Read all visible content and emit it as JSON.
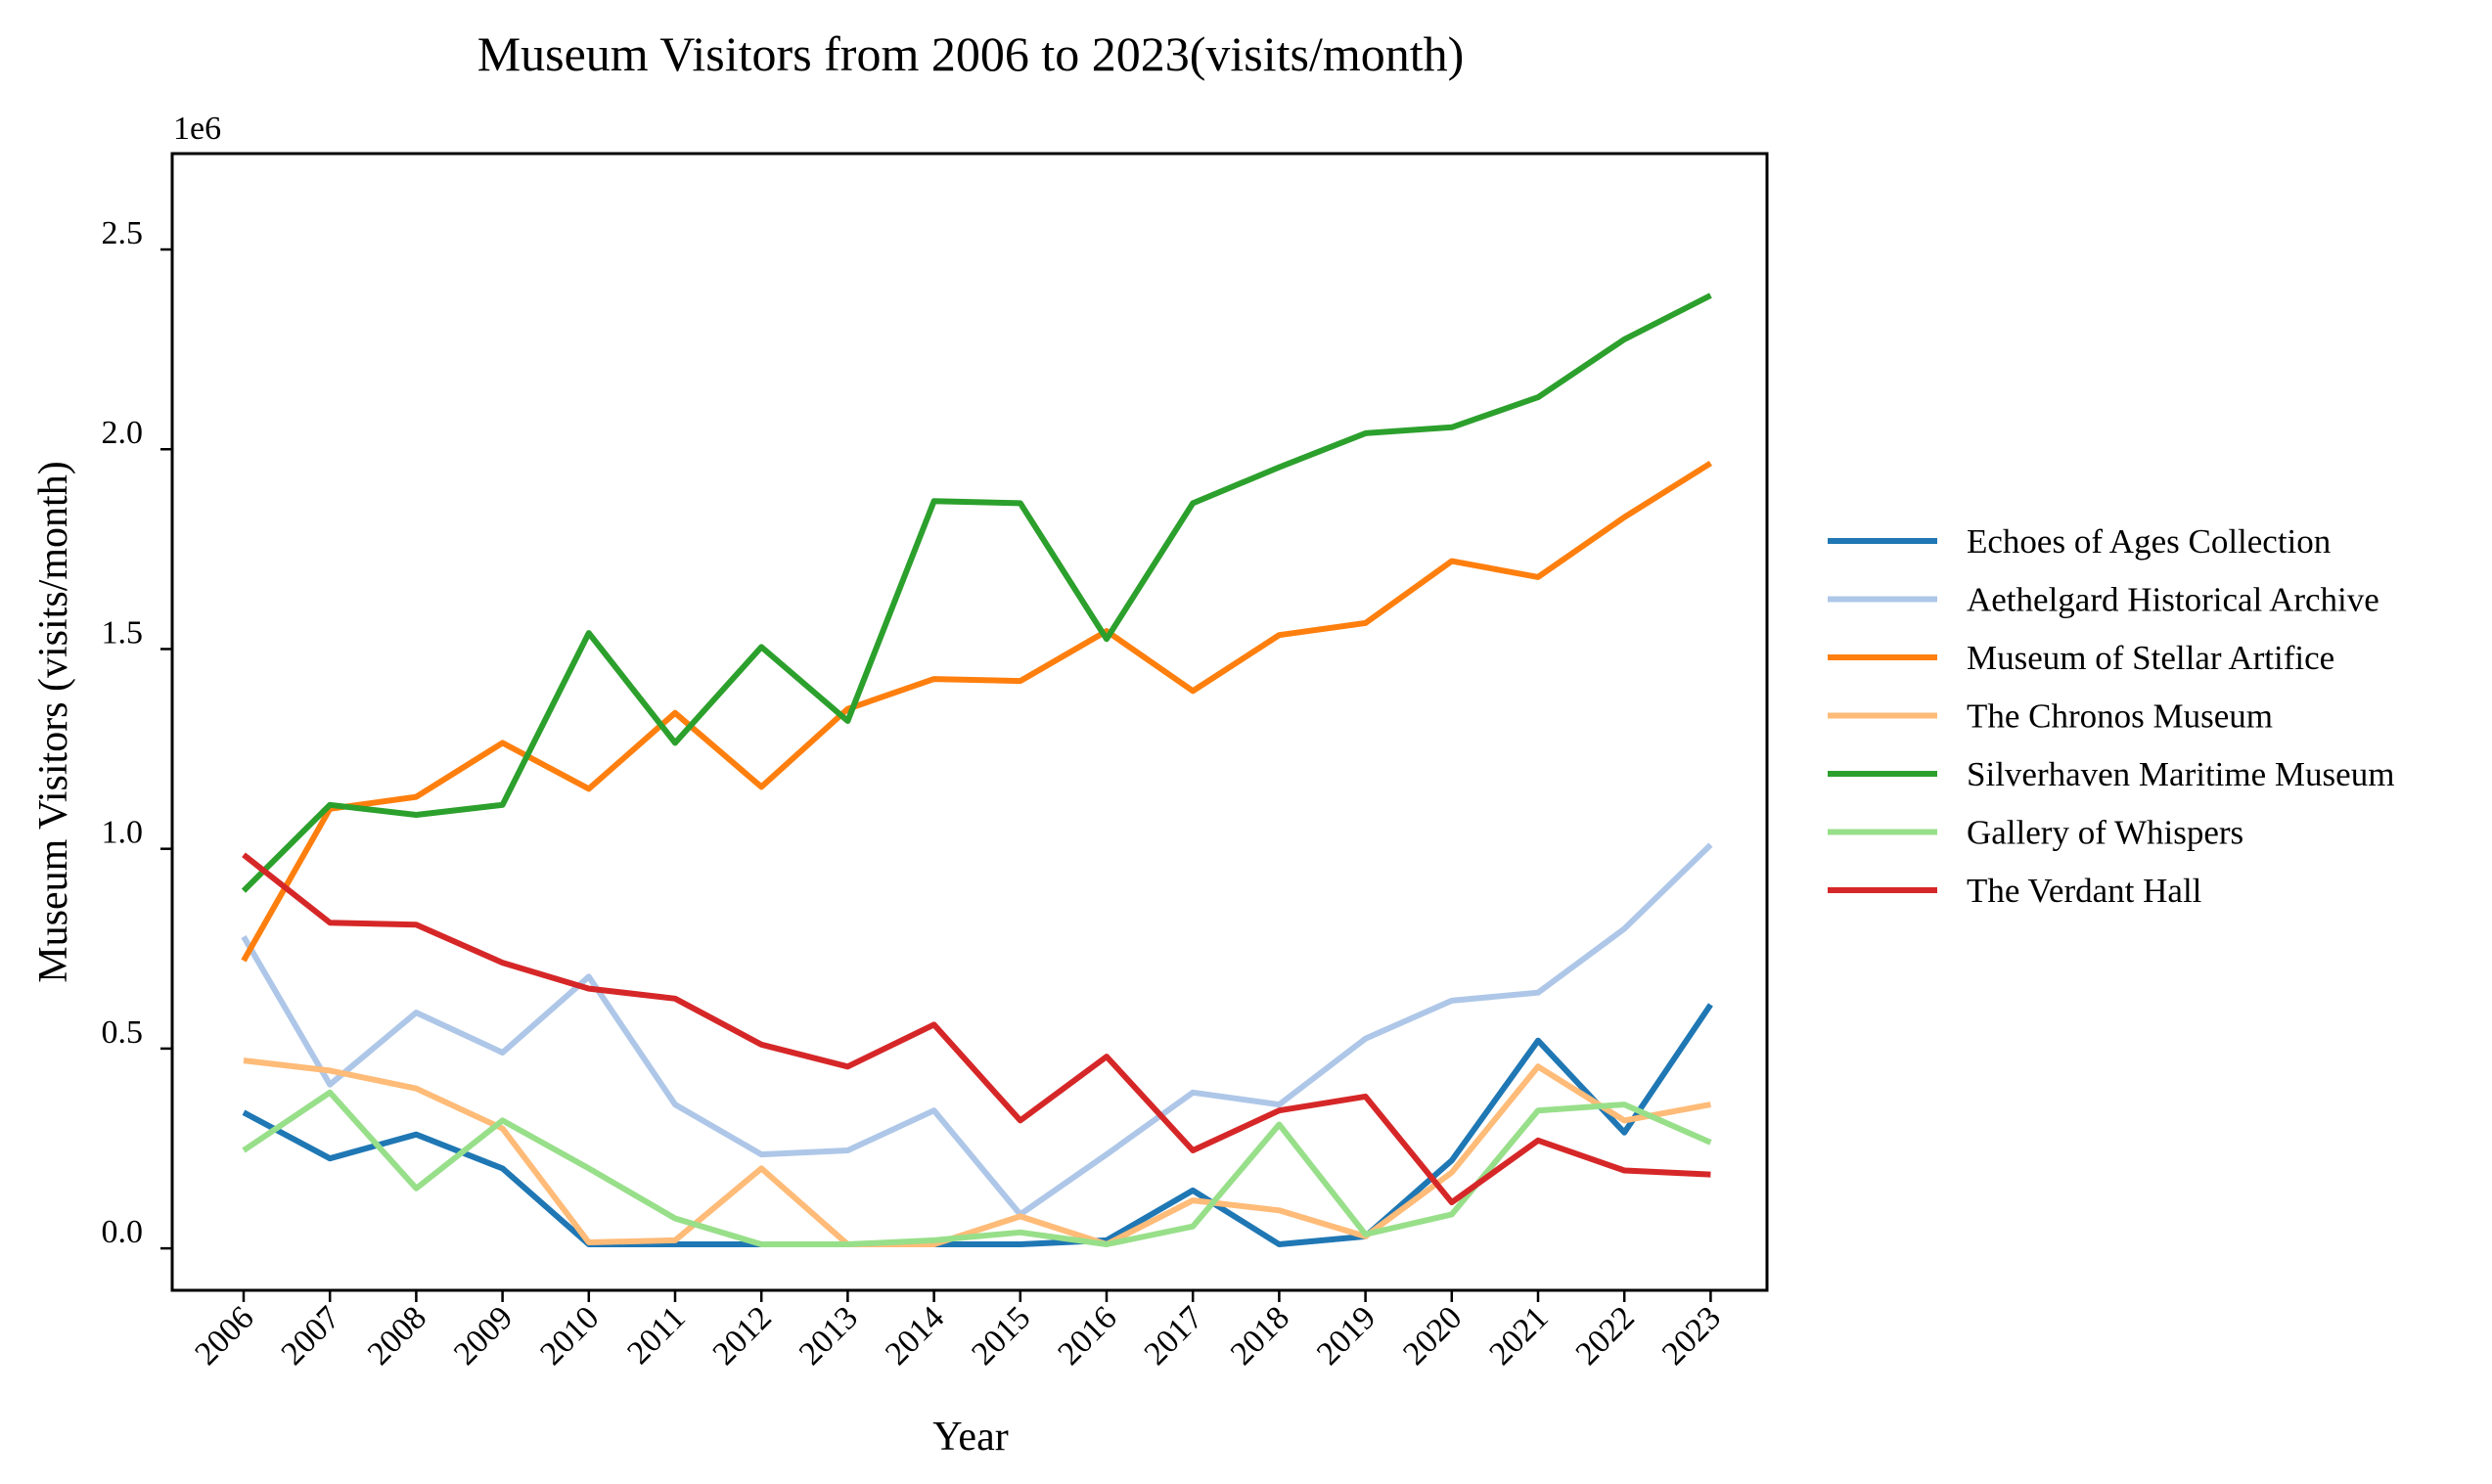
{
  "chart_data": {
    "type": "line",
    "title": "Museum Visitors from 2006 to 2023(visits/month)",
    "xlabel": "Year",
    "ylabel": "Museum Visitors (visits/month)",
    "y_multiplier": "1e6",
    "ylim": [
      -105000,
      2740000
    ],
    "yticks": [
      0,
      500000,
      1000000,
      1500000,
      2000000,
      2500000
    ],
    "ytick_labels": [
      "0.0",
      "0.5",
      "1.0",
      "1.5",
      "2.0",
      "2.5"
    ],
    "x": [
      "2006",
      "2007",
      "2008",
      "2009",
      "2010",
      "2011",
      "2012",
      "2013",
      "2014",
      "2015",
      "2016",
      "2017",
      "2018",
      "2019",
      "2020",
      "2021",
      "2022",
      "2023"
    ],
    "grid": false,
    "legend_position": "right-outside",
    "series": [
      {
        "name": "Echoes of Ages Collection",
        "color": "#1f77b4",
        "values": [
          340000,
          225000,
          285000,
          200000,
          10000,
          10000,
          10000,
          10000,
          10000,
          10000,
          20000,
          145000,
          10000,
          30000,
          220000,
          520000,
          290000,
          610000
        ]
      },
      {
        "name": "Aethelgard Historical Archive",
        "color": "#aec7e8",
        "values": [
          780000,
          410000,
          590000,
          490000,
          680000,
          360000,
          235000,
          245000,
          345000,
          85000,
          235000,
          390000,
          360000,
          525000,
          620000,
          640000,
          800000,
          1010000
        ]
      },
      {
        "name": "Museum of Stellar Artifice",
        "color": "#ff7f0e",
        "values": [
          720000,
          1100000,
          1130000,
          1265000,
          1150000,
          1340000,
          1155000,
          1350000,
          1425000,
          1420000,
          1545000,
          1395000,
          1535000,
          1565000,
          1720000,
          1680000,
          1830000,
          1965000
        ]
      },
      {
        "name": "The Chronos Museum",
        "color": "#ffbb78",
        "values": [
          470000,
          445000,
          400000,
          300000,
          15000,
          20000,
          200000,
          10000,
          10000,
          80000,
          10000,
          120000,
          95000,
          30000,
          190000,
          455000,
          320000,
          360000
        ]
      },
      {
        "name": "Silverhaven Maritime Museum",
        "color": "#2ca02c",
        "values": [
          895000,
          1110000,
          1085000,
          1110000,
          1540000,
          1265000,
          1505000,
          1320000,
          1870000,
          1865000,
          1525000,
          1865000,
          1955000,
          2040000,
          2055000,
          2130000,
          2275000,
          2385000
        ]
      },
      {
        "name": "Gallery of Whispers",
        "color": "#98df8a",
        "values": [
          245000,
          390000,
          150000,
          320000,
          200000,
          75000,
          10000,
          10000,
          20000,
          40000,
          10000,
          55000,
          310000,
          35000,
          85000,
          345000,
          360000,
          265000
        ]
      },
      {
        "name": "The Verdant Hall",
        "color": "#d62728",
        "values": [
          985000,
          815000,
          810000,
          715000,
          650000,
          625000,
          510000,
          455000,
          560000,
          320000,
          480000,
          245000,
          345000,
          380000,
          115000,
          270000,
          195000,
          185000
        ]
      }
    ]
  }
}
